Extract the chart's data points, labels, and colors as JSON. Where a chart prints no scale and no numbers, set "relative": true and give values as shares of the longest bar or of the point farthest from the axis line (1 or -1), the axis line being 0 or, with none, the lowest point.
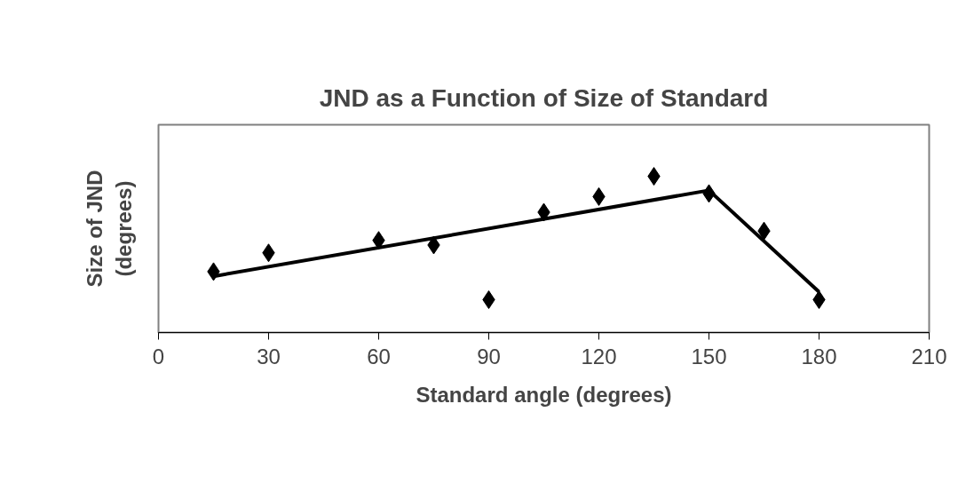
{
  "chart_data": {
    "type": "scatter",
    "title": "JND as a Function of Size of Standard",
    "xlabel": "Standard angle (degrees)",
    "ylabel": "Size of JND\n(degrees)",
    "relative": true,
    "xlim": [
      0,
      210
    ],
    "xticks": [
      0,
      30,
      60,
      90,
      120,
      150,
      180,
      210
    ],
    "grid": false,
    "line_style": "solid",
    "series": [
      {
        "marker": "diamond",
        "color": "#000000",
        "x": [
          15,
          30,
          60,
          75,
          90,
          105,
          120,
          135,
          150,
          165,
          180
        ],
        "values": [
          0.39,
          0.51,
          0.59,
          0.56,
          0.21,
          0.77,
          0.87,
          1.0,
          0.89,
          0.65,
          0.21
        ]
      },
      {
        "type": "line",
        "marker": "none",
        "color": "#000000",
        "x": [
          15,
          150,
          180
        ],
        "values": [
          0.36,
          0.91,
          0.26
        ]
      }
    ]
  }
}
